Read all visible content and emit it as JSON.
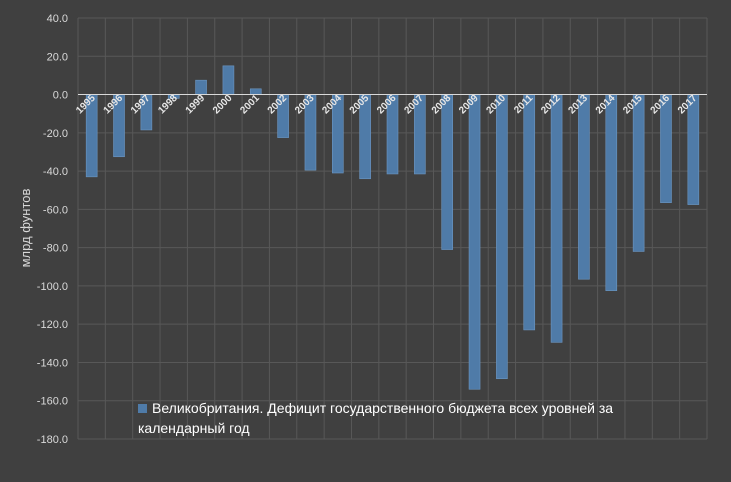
{
  "chart_data": {
    "type": "bar",
    "title": "",
    "xlabel": "",
    "ylabel": "млрд фунтов",
    "ylim": [
      -180,
      40
    ],
    "yticks": [
      "40.0",
      "20.0",
      "0.0",
      "-20.0",
      "-40.0",
      "-60.0",
      "-80.0",
      "-100.0",
      "-120.0",
      "-140.0",
      "-160.0",
      "-180.0"
    ],
    "ytick_values": [
      40,
      20,
      0,
      -20,
      -40,
      -60,
      -80,
      -100,
      -120,
      -140,
      -160,
      -180
    ],
    "categories": [
      "1995",
      "1996",
      "1997",
      "1998",
      "1999",
      "2000",
      "2001",
      "2002",
      "2003",
      "2004",
      "2005",
      "2006",
      "2007",
      "2008",
      "2009",
      "2010",
      "2011",
      "2012",
      "2013",
      "2014",
      "2015",
      "2016",
      "2017"
    ],
    "series": [
      {
        "name": "Великобритания. Дефицит государственного бюджета всех уровней за календарный год",
        "values": [
          -43,
          -32.5,
          -18.5,
          -2,
          7.5,
          15,
          3,
          -22.5,
          -39.5,
          -41,
          -44,
          -41.5,
          -41.5,
          -81,
          -154,
          -148.5,
          -123,
          -129.5,
          -96.5,
          -102.5,
          -82,
          -56.5,
          -57.5
        ]
      }
    ],
    "legend_position": "bottom-center",
    "grid": true,
    "colors": {
      "bar": "#4f7ba8",
      "bar_edge": "#6d97c2",
      "grid": "#585858",
      "zero_line": "#d9d9d9",
      "background": "#404040"
    }
  }
}
